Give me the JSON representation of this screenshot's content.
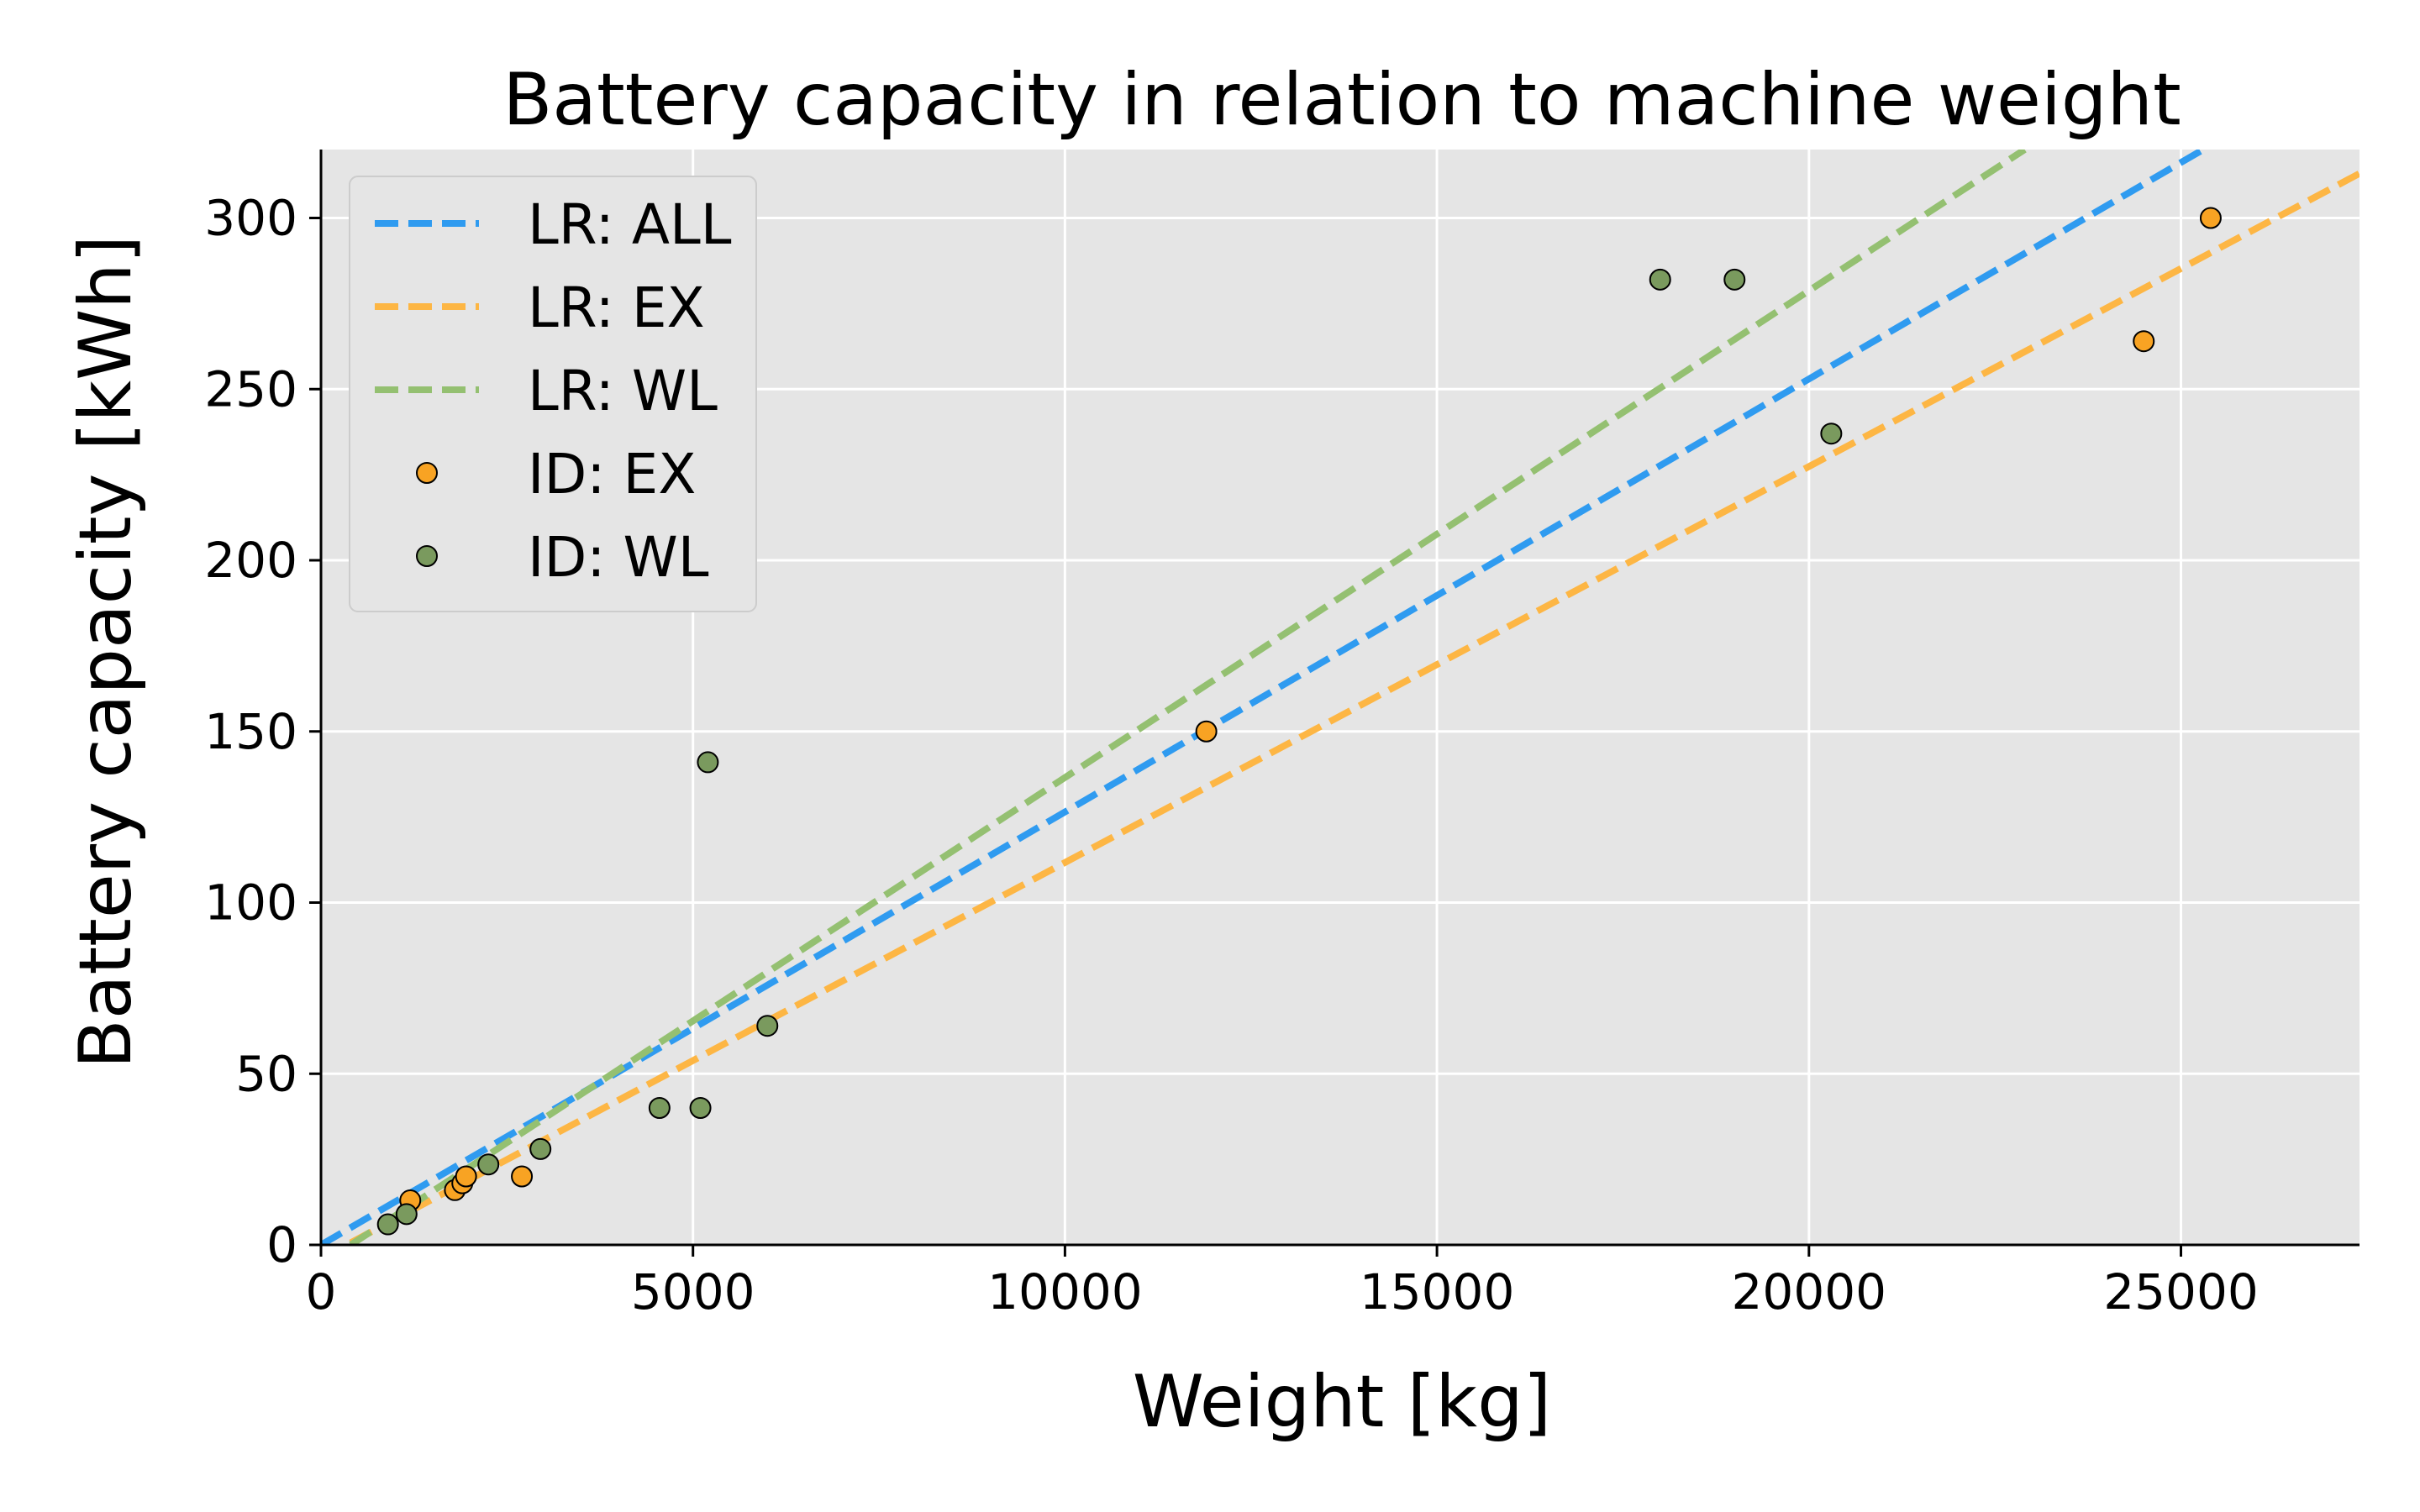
{
  "chart_data": {
    "type": "scatter",
    "title": "Battery capacity in relation to machine weight",
    "xlabel": "Weight [kg]",
    "ylabel": "Battery capacity [kWh]",
    "xlim": [
      0,
      27400
    ],
    "ylim": [
      0,
      320
    ],
    "xticks": [
      0,
      5000,
      10000,
      15000,
      20000,
      25000
    ],
    "yticks": [
      0,
      50,
      100,
      150,
      200,
      250,
      300
    ],
    "grid": true,
    "legend_position": "top-left",
    "colors": {
      "plot_background": "#e5e5e5",
      "grid": "#ffffff",
      "lr_all": "#2f9bf0",
      "lr_ex": "#fdb644",
      "lr_wl": "#94c071",
      "id_ex": "#f8a323",
      "id_wl": "#7a9a5e",
      "marker_edge": "#000000"
    },
    "legend": [
      {
        "label": "LR: ALL",
        "kind": "line",
        "color": "#2f9bf0"
      },
      {
        "label": "LR: EX",
        "kind": "line",
        "color": "#fdb644"
      },
      {
        "label": "LR: WL",
        "kind": "line",
        "color": "#94c071"
      },
      {
        "label": "ID: EX",
        "kind": "marker",
        "color": "#f8a323"
      },
      {
        "label": "ID: WL",
        "kind": "marker",
        "color": "#7a9a5e"
      }
    ],
    "series": [
      {
        "name": "LR: ALL",
        "kind": "line",
        "style": "dashed",
        "color": "#2f9bf0",
        "x": [
          0,
          25300
        ],
        "y": [
          0,
          320
        ]
      },
      {
        "name": "LR: EX",
        "kind": "line",
        "style": "dashed",
        "color": "#fdb644",
        "x": [
          0,
          27400
        ],
        "y": [
          -4,
          313
        ]
      },
      {
        "name": "LR: WL",
        "kind": "line",
        "style": "dashed",
        "color": "#94c071",
        "x": [
          400,
          22900
        ],
        "y": [
          0,
          320
        ]
      },
      {
        "name": "ID: EX",
        "kind": "scatter",
        "color": "#f8a323",
        "x": [
          1200,
          1800,
          1900,
          1950,
          2700,
          11900,
          24500,
          25400
        ],
        "y": [
          13,
          16,
          18,
          20,
          20,
          150,
          264,
          300
        ]
      },
      {
        "name": "ID: WL",
        "kind": "scatter",
        "color": "#7a9a5e",
        "x": [
          900,
          1150,
          2250,
          2950,
          4550,
          5100,
          5200,
          6000,
          18000,
          19000,
          20300
        ],
        "y": [
          6,
          9,
          23.5,
          28,
          40,
          40,
          141,
          64,
          282,
          282,
          237
        ]
      }
    ]
  }
}
